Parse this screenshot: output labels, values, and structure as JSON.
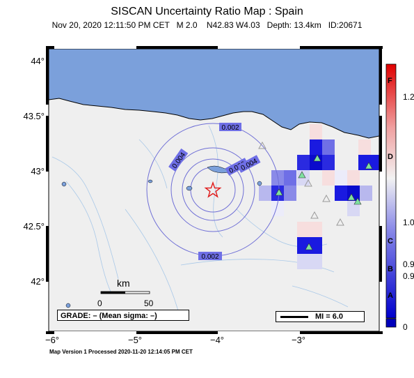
{
  "title": "SISCAN Uncertainty Ratio Map : Spain",
  "subtitle": "Nov 20, 2020 12:11:50 PM CET   M 2.0    N42.83 W4.03   Depth: 13.4km   ID:20671",
  "y_axis_labels": [
    "44°",
    "43.5°",
    "43°",
    "42.5°",
    "42°"
  ],
  "x_axis_labels": [
    "−6°",
    "−5°",
    "−4°",
    "−3°"
  ],
  "contour_labels": [
    "0.002",
    "0.004",
    "0.006",
    "0.004",
    "0.002"
  ],
  "scale_bar": {
    "unit": "km",
    "ticks": [
      "0",
      "50"
    ]
  },
  "grade_box": "GRADE: – (Mean sigma: –)",
  "mi_legend": "MI = 6.0",
  "colorbar": {
    "letters": [
      "F",
      "D",
      "C",
      "B",
      "A"
    ],
    "values_top": [
      "1.2",
      "1.0",
      "0.9",
      "0.9"
    ],
    "bottom_value": "0"
  },
  "footer": "Map Version 1 Processed 2020-11-20 12:14:05 PM CET",
  "colors": {
    "sea": "#7ba0db",
    "land": "#efefef",
    "contour": "#6f6fd6",
    "epicenter": "#e01a1a",
    "station_active": "#7ee0a0",
    "station_inactive": "#9a9a9a"
  },
  "epicenter": {
    "lat": 42.83,
    "lon": -4.03
  }
}
